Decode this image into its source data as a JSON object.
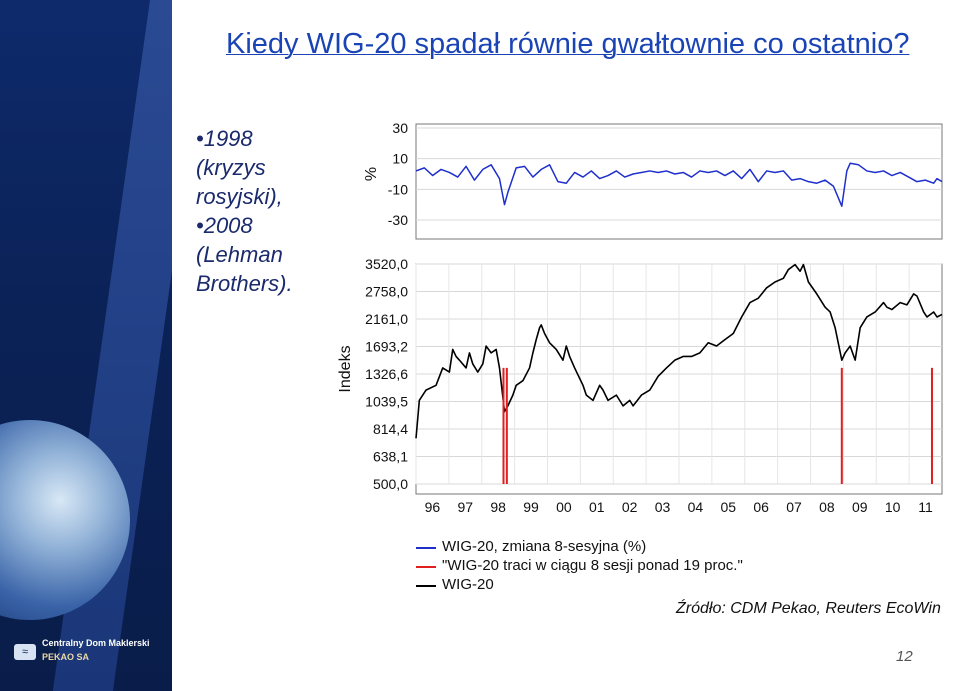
{
  "title": "Kiedy WIG-20 spadał równie gwałtownie co ostatnio?",
  "bullets": [
    "•1998 (kryzys rosyjski),",
    "•2008 (Lehman Brothers)."
  ],
  "brand": {
    "line1": "Centralny Dom Maklerski",
    "line2": "PEKAO SA"
  },
  "legend": [
    {
      "label": "WIG-20, zmiana 8-sesyjna (%)",
      "color": "#1e2fcc"
    },
    {
      "label": "\"WIG-20 traci w ciągu 8 sesji ponad 19 proc.\"",
      "color": "#e02020"
    },
    {
      "label": "WIG-20",
      "color": "#000000"
    }
  ],
  "source": "Źródło: CDM Pekao, Reuters EcoWin",
  "page_number": "12",
  "chart_data": [
    {
      "type": "line",
      "series": [
        {
          "name": "WIG-20, zmiana 8-sesyjna (%)",
          "color": "#1e2fcc"
        }
      ],
      "ylabel": "%",
      "yticks": [
        30,
        10,
        -10,
        -30
      ],
      "ylim": [
        -30,
        30
      ],
      "grid": true,
      "points": [
        [
          96.0,
          2
        ],
        [
          96.25,
          4
        ],
        [
          96.5,
          -1
        ],
        [
          96.75,
          3
        ],
        [
          97.0,
          1
        ],
        [
          97.25,
          -2
        ],
        [
          97.5,
          5
        ],
        [
          97.75,
          -4
        ],
        [
          98.0,
          3
        ],
        [
          98.25,
          6
        ],
        [
          98.5,
          -3
        ],
        [
          98.65,
          -20
        ],
        [
          98.75,
          -12
        ],
        [
          99.0,
          4
        ],
        [
          99.25,
          5
        ],
        [
          99.5,
          -2
        ],
        [
          99.75,
          3
        ],
        [
          100.0,
          6
        ],
        [
          100.25,
          -5
        ],
        [
          100.5,
          -6
        ],
        [
          100.75,
          1
        ],
        [
          101.0,
          -2
        ],
        [
          101.25,
          2
        ],
        [
          101.5,
          -3
        ],
        [
          101.75,
          -1
        ],
        [
          102.0,
          2
        ],
        [
          102.25,
          -2
        ],
        [
          102.5,
          0
        ],
        [
          102.75,
          1
        ],
        [
          103.0,
          2
        ],
        [
          103.25,
          1
        ],
        [
          103.5,
          2
        ],
        [
          103.75,
          0
        ],
        [
          104.0,
          1
        ],
        [
          104.25,
          -2
        ],
        [
          104.5,
          2
        ],
        [
          104.75,
          1
        ],
        [
          105.0,
          2
        ],
        [
          105.25,
          -1
        ],
        [
          105.5,
          2
        ],
        [
          105.75,
          -3
        ],
        [
          106.0,
          3
        ],
        [
          106.25,
          -5
        ],
        [
          106.5,
          2
        ],
        [
          106.75,
          1
        ],
        [
          107.0,
          2
        ],
        [
          107.25,
          -4
        ],
        [
          107.5,
          -3
        ],
        [
          107.75,
          -5
        ],
        [
          108.0,
          -6
        ],
        [
          108.25,
          -4
        ],
        [
          108.5,
          -8
        ],
        [
          108.75,
          -21
        ],
        [
          108.9,
          2
        ],
        [
          109.0,
          7
        ],
        [
          109.25,
          6
        ],
        [
          109.5,
          2
        ],
        [
          109.75,
          1
        ],
        [
          110.0,
          2
        ],
        [
          110.25,
          -1
        ],
        [
          110.5,
          1
        ],
        [
          110.75,
          -2
        ],
        [
          111.0,
          -5
        ],
        [
          111.25,
          -4
        ],
        [
          111.5,
          -6
        ],
        [
          111.6,
          -3
        ],
        [
          111.75,
          -5
        ]
      ]
    },
    {
      "type": "line",
      "series": [
        {
          "name": "WIG-20",
          "color": "#000000"
        }
      ],
      "ylabel": "Indeks",
      "yticks": [
        3520.0,
        2758.0,
        2161.0,
        1693.2,
        1326.6,
        1039.5,
        814.4,
        638.1,
        500.0
      ],
      "ytick_labels": [
        "3520,0",
        "2758,0",
        "2161,0",
        "1693,2",
        "1326,6",
        "1039,5",
        "814,4",
        "638,1",
        "500,0"
      ],
      "yscale": "log",
      "ylim": [
        500,
        3520
      ],
      "x_categories": [
        "96",
        "97",
        "98",
        "99",
        "00",
        "01",
        "02",
        "03",
        "04",
        "05",
        "06",
        "07",
        "08",
        "09",
        "10",
        "11"
      ],
      "xlim": [
        96.0,
        111.75
      ],
      "grid": true,
      "points": [
        [
          96.0,
          750
        ],
        [
          96.1,
          1050
        ],
        [
          96.3,
          1150
        ],
        [
          96.6,
          1200
        ],
        [
          96.8,
          1400
        ],
        [
          97.0,
          1350
        ],
        [
          97.1,
          1650
        ],
        [
          97.2,
          1550
        ],
        [
          97.3,
          1500
        ],
        [
          97.5,
          1400
        ],
        [
          97.6,
          1600
        ],
        [
          97.7,
          1450
        ],
        [
          97.85,
          1350
        ],
        [
          98.0,
          1450
        ],
        [
          98.1,
          1700
        ],
        [
          98.25,
          1600
        ],
        [
          98.4,
          1650
        ],
        [
          98.5,
          1400
        ],
        [
          98.65,
          950
        ],
        [
          98.75,
          1000
        ],
        [
          98.9,
          1100
        ],
        [
          99.0,
          1200
        ],
        [
          99.2,
          1250
        ],
        [
          99.4,
          1400
        ],
        [
          99.5,
          1600
        ],
        [
          99.6,
          1800
        ],
        [
          99.7,
          2000
        ],
        [
          99.75,
          2050
        ],
        [
          99.85,
          1900
        ],
        [
          100.0,
          1750
        ],
        [
          100.2,
          1650
        ],
        [
          100.4,
          1500
        ],
        [
          100.5,
          1700
        ],
        [
          100.6,
          1550
        ],
        [
          100.75,
          1400
        ],
        [
          101.0,
          1200
        ],
        [
          101.1,
          1100
        ],
        [
          101.3,
          1050
        ],
        [
          101.5,
          1200
        ],
        [
          101.6,
          1150
        ],
        [
          101.75,
          1050
        ],
        [
          102.0,
          1100
        ],
        [
          102.2,
          1000
        ],
        [
          102.4,
          1050
        ],
        [
          102.5,
          1000
        ],
        [
          102.75,
          1100
        ],
        [
          103.0,
          1150
        ],
        [
          103.25,
          1300
        ],
        [
          103.5,
          1400
        ],
        [
          103.75,
          1500
        ],
        [
          104.0,
          1550
        ],
        [
          104.25,
          1550
        ],
        [
          104.5,
          1600
        ],
        [
          104.75,
          1750
        ],
        [
          105.0,
          1700
        ],
        [
          105.25,
          1800
        ],
        [
          105.5,
          1900
        ],
        [
          105.75,
          2200
        ],
        [
          106.0,
          2500
        ],
        [
          106.25,
          2600
        ],
        [
          106.5,
          2850
        ],
        [
          106.75,
          3000
        ],
        [
          107.0,
          3100
        ],
        [
          107.15,
          3350
        ],
        [
          107.35,
          3500
        ],
        [
          107.5,
          3300
        ],
        [
          107.6,
          3500
        ],
        [
          107.75,
          3000
        ],
        [
          108.0,
          2700
        ],
        [
          108.25,
          2400
        ],
        [
          108.4,
          2300
        ],
        [
          108.55,
          2000
        ],
        [
          108.75,
          1500
        ],
        [
          108.85,
          1600
        ],
        [
          109.0,
          1700
        ],
        [
          109.15,
          1500
        ],
        [
          109.3,
          2000
        ],
        [
          109.5,
          2200
        ],
        [
          109.75,
          2300
        ],
        [
          110.0,
          2500
        ],
        [
          110.1,
          2400
        ],
        [
          110.25,
          2350
        ],
        [
          110.5,
          2500
        ],
        [
          110.7,
          2450
        ],
        [
          110.9,
          2700
        ],
        [
          111.0,
          2650
        ],
        [
          111.2,
          2300
        ],
        [
          111.3,
          2200
        ],
        [
          111.5,
          2300
        ],
        [
          111.6,
          2200
        ],
        [
          111.75,
          2250
        ]
      ],
      "markers": [
        {
          "series": "\"WIG-20 traci w ciągu 8 sesji ponad 19 proc.\"",
          "x": 98.62
        },
        {
          "series": "\"WIG-20 traci w ciągu 8 sesji ponad 19 proc.\"",
          "x": 98.72
        },
        {
          "series": "\"WIG-20 traci w ciągu 8 sesji ponad 19 proc.\"",
          "x": 108.75
        },
        {
          "series": "\"WIG-20 traci w ciągu 8 sesji ponad 19 proc.\"",
          "x": 111.45
        }
      ]
    }
  ]
}
